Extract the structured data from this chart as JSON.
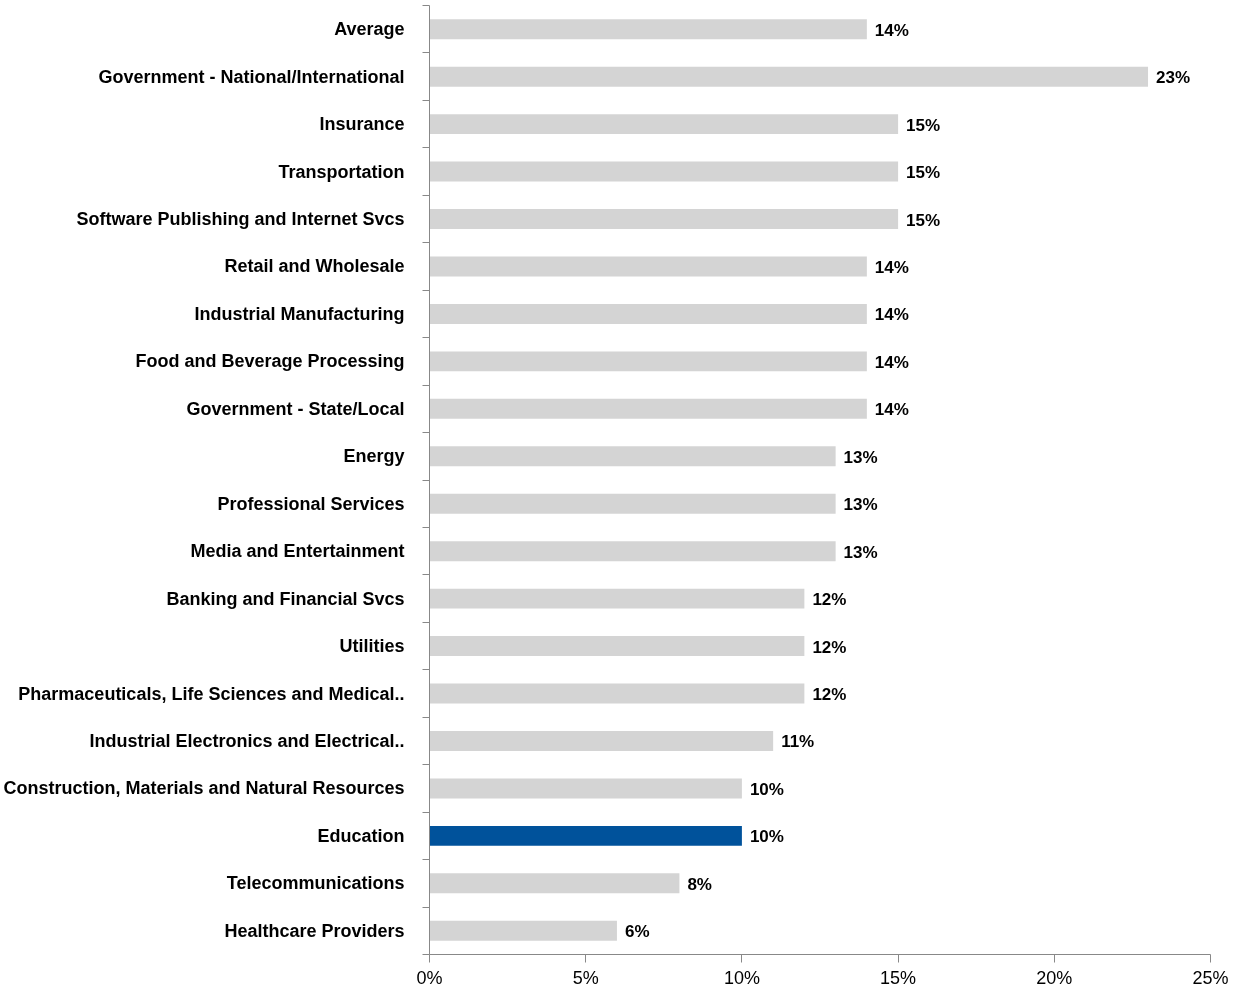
{
  "chart_data": {
    "type": "bar",
    "orientation": "horizontal",
    "categories": [
      "Average",
      "Government - National/International",
      "Insurance",
      "Transportation",
      "Software Publishing and Internet Svcs",
      "Retail and Wholesale",
      "Industrial Manufacturing",
      "Food and Beverage Processing",
      "Government - State/Local",
      "Energy",
      "Professional Services",
      "Media and Entertainment",
      "Banking and Financial Svcs",
      "Utilities",
      "Pharmaceuticals, Life Sciences and Medical..",
      "Industrial Electronics and Electrical..",
      "Construction, Materials and Natural Resources",
      "Education",
      "Telecommunications",
      "Healthcare Providers"
    ],
    "values": [
      14,
      23,
      15,
      15,
      15,
      14,
      14,
      14,
      14,
      13,
      13,
      13,
      12,
      12,
      12,
      11,
      10,
      10,
      8,
      6
    ],
    "value_labels": [
      "14%",
      "23%",
      "15%",
      "15%",
      "15%",
      "14%",
      "14%",
      "14%",
      "14%",
      "13%",
      "13%",
      "13%",
      "12%",
      "12%",
      "12%",
      "11%",
      "10%",
      "10%",
      "8%",
      "6%"
    ],
    "colors": [
      "#d4d4d4",
      "#d4d4d4",
      "#d4d4d4",
      "#d4d4d4",
      "#d4d4d4",
      "#d4d4d4",
      "#d4d4d4",
      "#d4d4d4",
      "#d4d4d4",
      "#d4d4d4",
      "#d4d4d4",
      "#d4d4d4",
      "#d4d4d4",
      "#d4d4d4",
      "#d4d4d4",
      "#d4d4d4",
      "#d4d4d4",
      "#00529b",
      "#d4d4d4",
      "#d4d4d4"
    ],
    "xlim": [
      0,
      25
    ],
    "xticks": [
      {
        "value": 0,
        "label": "0%"
      },
      {
        "value": 5,
        "label": "5%"
      },
      {
        "value": 10,
        "label": "10%"
      },
      {
        "value": 15,
        "label": "15%"
      },
      {
        "value": 20,
        "label": "20%"
      },
      {
        "value": 25,
        "label": "25%"
      }
    ],
    "grid": false
  }
}
